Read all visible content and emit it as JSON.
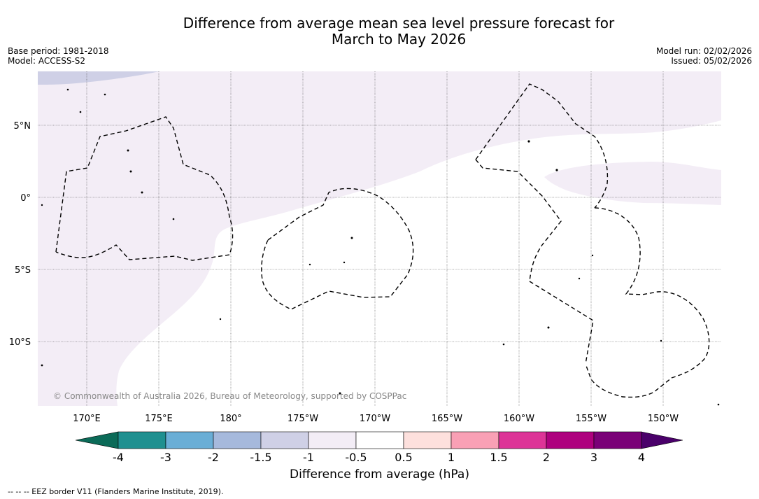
{
  "title_line1": "Difference from average mean sea level pressure forecast for",
  "title_line2": "March to May 2026",
  "base_period": "Base period: 1981-2018",
  "model": "Model: ACCESS-S2",
  "model_run": "Model run: 02/02/2026",
  "issued": "Issued: 05/02/2026",
  "copyright": "© Commonwealth of Australia 2026, Bureau of Meteorology, supported by COSPPac",
  "lat_labels": [
    "5°N",
    "0°",
    "5°S",
    "10°S"
  ],
  "lon_labels": [
    "170°E",
    "175°E",
    "180°",
    "175°W",
    "170°W",
    "165°W",
    "160°W",
    "155°W",
    "150°W"
  ],
  "colorbar": {
    "title": "Difference from average (hPa)",
    "tick_labels": [
      "-4",
      "-3",
      "-2",
      "-1.5",
      "-1",
      "-0.5",
      "0.5",
      "1",
      "1.5",
      "2",
      "3",
      "4"
    ],
    "colors": [
      "#0b6b58",
      "#1f9090",
      "#6aaed6",
      "#a6b9dc",
      "#cfd0e6",
      "#f3edf6",
      "#ffffff",
      "#fde0dd",
      "#f9a0b5",
      "#dd3497",
      "#ae017e",
      "#7a0177",
      "#4a006a"
    ],
    "highlight_colors": {
      "band_-1_-0.5": "#f3edf6",
      "band_-1.5_-1": "#cfd0e6"
    }
  },
  "footer": "--  --  -- EEZ border V11 (Flanders Marine Institute, 2019)."
}
